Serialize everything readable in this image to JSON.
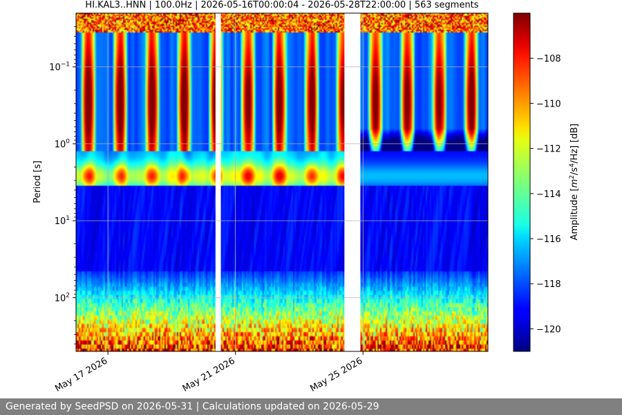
{
  "chart_data": {
    "type": "heatmap",
    "title": "HI.KAL3..HNN | 100.0Hz | 2026-05-16T00:00:04 - 2026-05-28T22:00:00 | 563 segments",
    "xlabel": "",
    "ylabel": "Period [s]",
    "x_range": [
      "2026-05-16T00:00:04",
      "2026-05-28T22:00:00"
    ],
    "x_ticks": [
      {
        "date": "2026-05-17",
        "label": "May 17 2026"
      },
      {
        "date": "2026-05-21",
        "label": "May 21 2026"
      },
      {
        "date": "2026-05-25",
        "label": "May 25 2026"
      }
    ],
    "y_scale": "log",
    "y_range": [
      500,
      0.02
    ],
    "y_ticks": [
      {
        "value": 0.1,
        "base": "10",
        "exp": "−1"
      },
      {
        "value": 1,
        "base": "10",
        "exp": "0"
      },
      {
        "value": 10,
        "base": "10",
        "exp": "1"
      },
      {
        "value": 100,
        "base": "10",
        "exp": "2"
      }
    ],
    "grid": true,
    "data_gaps": [
      {
        "start": "2026-05-20T09:00:00",
        "end": "2026-05-20T13:00:00"
      },
      {
        "start": "2026-05-24T10:00:00",
        "end": "2026-05-24T22:00:00"
      }
    ],
    "colorbar": {
      "label_prefix": "Amplitude [",
      "label_m": "m",
      "label_m_exp": "2",
      "label_s": "/s",
      "label_s_exp": "4",
      "label_suffix": "/Hz] [dB]",
      "range": [
        -121,
        -106
      ],
      "ticks": [
        -108,
        -110,
        -112,
        -114,
        -116,
        -118,
        -120
      ],
      "colormap": "jet"
    },
    "colors": {
      "high": "#7f0000",
      "low": "#00007f",
      "gap": "#ffffff",
      "grid": "#b0b0b0"
    }
  },
  "footer": {
    "text": "Generated by SeedPSD on 2026-05-31 | Calculations updated on 2026-05-29"
  }
}
